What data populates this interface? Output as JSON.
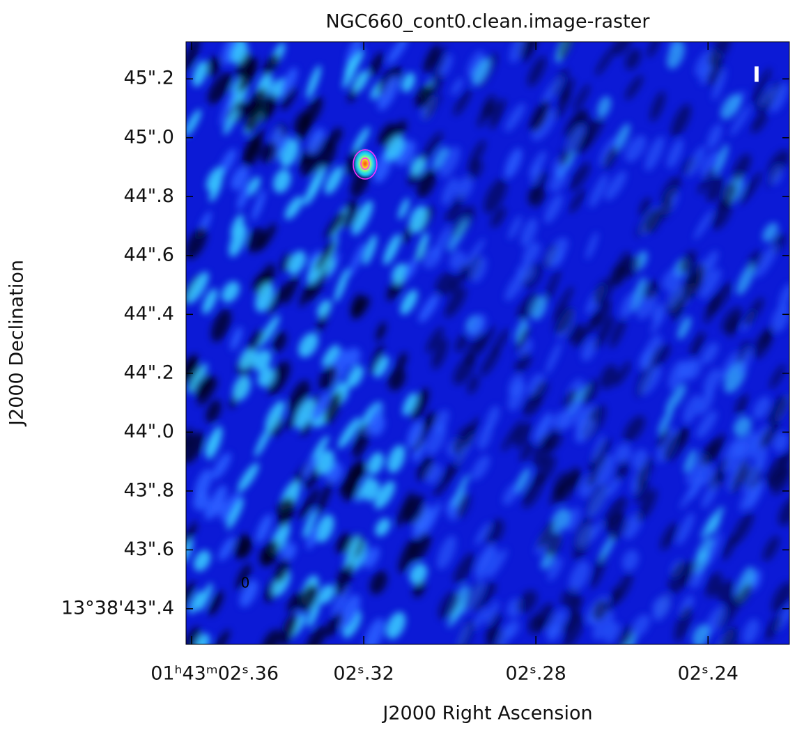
{
  "chart_data": {
    "type": "image",
    "title": "NGC660_cont0.clean.image-raster",
    "xlabel": "J2000 Right Ascension",
    "ylabel": "J2000 Declination",
    "stokes_label": "I",
    "corner_label": "0",
    "xlim": [
      2.3613,
      2.2211
    ],
    "ylim": [
      43.279,
      45.326
    ],
    "xticks": [
      {
        "value": 2.36,
        "label": "01ʰ43ᵐ02ˢ.36"
      },
      {
        "value": 2.32,
        "label": "02ˢ.32"
      },
      {
        "value": 2.28,
        "label": "02ˢ.28"
      },
      {
        "value": 2.24,
        "label": "02ˢ.24"
      }
    ],
    "yticks": [
      {
        "value": 45.2,
        "label": "45\".2"
      },
      {
        "value": 45.0,
        "label": "45\".0"
      },
      {
        "value": 44.8,
        "label": "44\".8"
      },
      {
        "value": 44.6,
        "label": "44\".6"
      },
      {
        "value": 44.4,
        "label": "44\".4"
      },
      {
        "value": 44.2,
        "label": "44\".2"
      },
      {
        "value": 44.0,
        "label": "44\".0"
      },
      {
        "value": 43.8,
        "label": "43\".8"
      },
      {
        "value": 43.6,
        "label": "43\".6"
      },
      {
        "value": 43.4,
        "label": "13°38'43\".4"
      }
    ]
  }
}
